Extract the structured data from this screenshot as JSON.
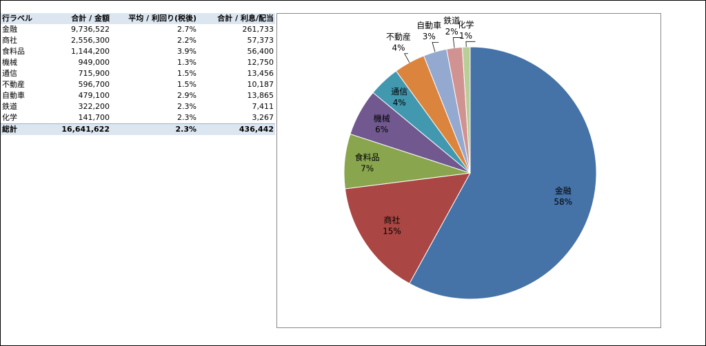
{
  "table": {
    "header": [
      "行ラベル",
      "合計 / 金額",
      "平均 / 利回り(税後)",
      "合計 / 利息/配当"
    ],
    "rows": [
      [
        "金融",
        "9,736,522",
        "2.7%",
        "261,733"
      ],
      [
        "商社",
        "2,556,300",
        "2.2%",
        "57,373"
      ],
      [
        "食料品",
        "1,144,200",
        "3.9%",
        "56,400"
      ],
      [
        "機械",
        "949,000",
        "1.3%",
        "12,750"
      ],
      [
        "通信",
        "715,900",
        "1.5%",
        "13,456"
      ],
      [
        "不動産",
        "596,700",
        "1.5%",
        "10,187"
      ],
      [
        "自動車",
        "479,100",
        "2.9%",
        "13,865"
      ],
      [
        "鉄道",
        "322,200",
        "2.3%",
        "7,411"
      ],
      [
        "化学",
        "141,700",
        "2.3%",
        "3,267"
      ]
    ],
    "total": [
      "総計",
      "16,641,622",
      "2.3%",
      "436,442"
    ]
  },
  "chart_data": {
    "type": "pie",
    "categories": [
      "金融",
      "商社",
      "食料品",
      "機械",
      "通信",
      "不動産",
      "自動車",
      "鉄道",
      "化学"
    ],
    "values": [
      58,
      15,
      7,
      6,
      4,
      4,
      3,
      2,
      1
    ],
    "value_labels": [
      "58%",
      "15%",
      "7%",
      "6%",
      "4%",
      "4%",
      "3%",
      "2%",
      "1%"
    ],
    "colors": [
      "#4572a7",
      "#aa4643",
      "#89a54e",
      "#71588f",
      "#4198af",
      "#db843d",
      "#93a9cf",
      "#d19392",
      "#b9cd96"
    ]
  }
}
